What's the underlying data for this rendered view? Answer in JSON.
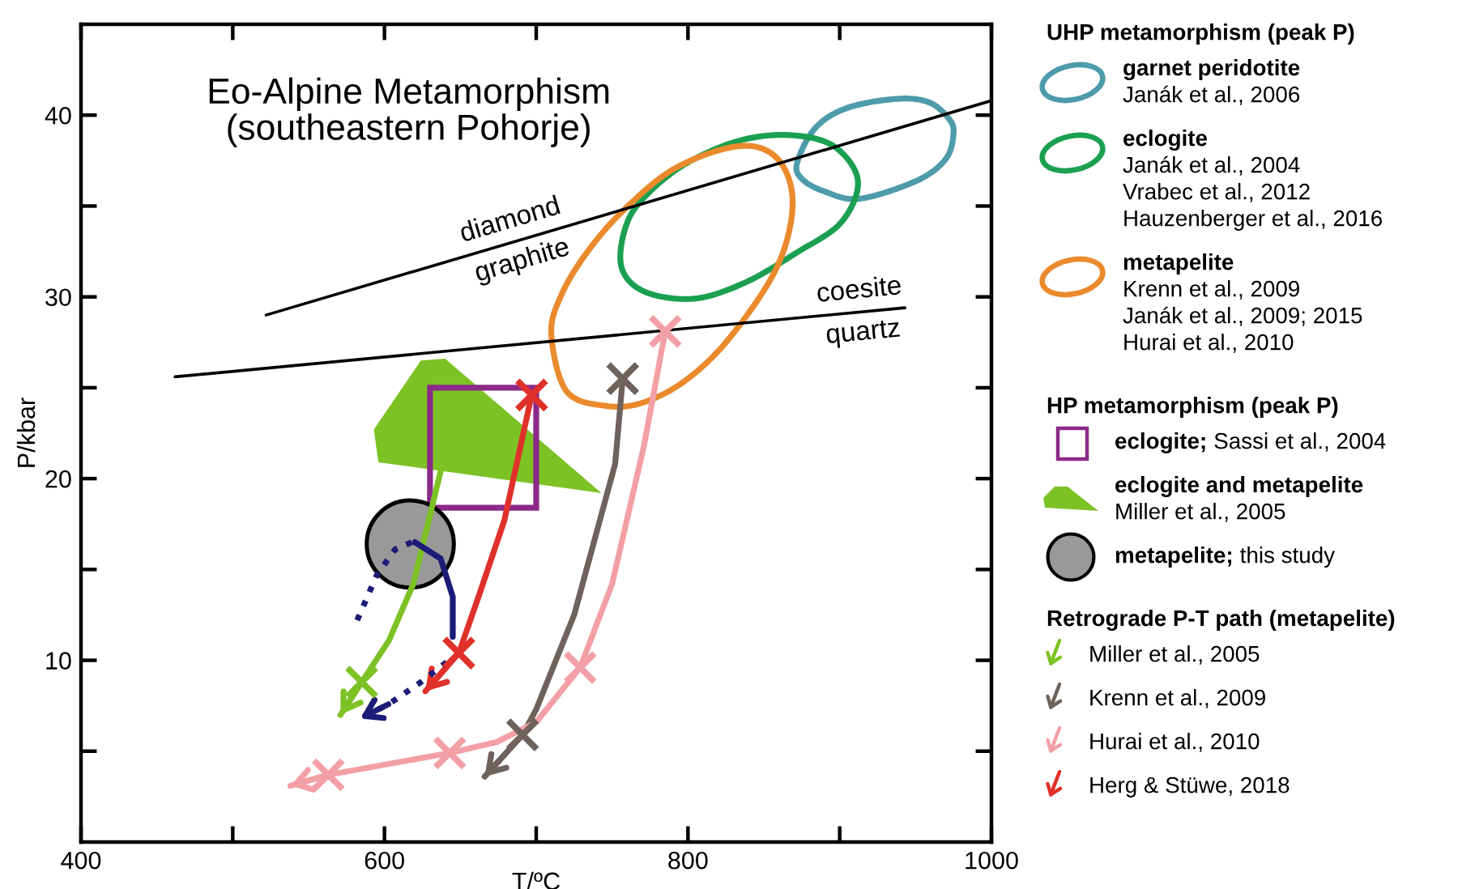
{
  "chart_data": {
    "type": "line",
    "title": "Eo-Alpine Metamorphism\n(southeastern Pohorje)",
    "xlabel": "T/ºC",
    "ylabel": "P/kbar",
    "xlim": [
      400,
      1000
    ],
    "ylim": [
      0,
      45
    ],
    "xticks": [
      400,
      {
        "value": 500,
        "label": null
      },
      600,
      {
        "value": 700,
        "label": null
      },
      800,
      {
        "value": 900,
        "label": null
      },
      1000
    ],
    "yticks": [
      {
        "value": 5,
        "label": null
      },
      10,
      {
        "value": 15,
        "label": null
      },
      20,
      {
        "value": 25,
        "label": null
      },
      30,
      {
        "value": 35,
        "label": null
      },
      40
    ],
    "legend": "right",
    "annotations": [
      "UHP metamorphism (peak P)",
      "garnet peridotite\nJanák et al., 2006",
      "eclogite\nJanák et al., 2004\nVrabec et al., 2012\nHauzenberger et al., 2016",
      "metapelite\nKrenn et al., 2009\nJanák et al., 2009; 2015\nHurai et al., 2010",
      "HP metamorphism (peak P)",
      "eclogite; Sassi et al., 2004",
      "Retrograde P-T path (metapelite)"
    ],
    "series": [
      {
        "name": "diamond\ngraphite",
        "color": "#000000",
        "x": [
          522,
          1000
        ],
        "values": [
          29.0,
          40.8
        ]
      },
      {
        "name": "coesite\nquartz",
        "color": "#000000",
        "x": [
          462,
          943
        ],
        "values": [
          25.6,
          29.4
        ]
      },
      {
        "type": "area",
        "name": "eclogite and metapelite\nMiller et al., 2005",
        "color": "#7dc224",
        "x": [
          593,
          624,
          640,
          743,
          596
        ],
        "values": [
          22.7,
          26.5,
          26.6,
          19.2,
          20.9
        ]
      },
      {
        "type": "scatter",
        "marker": "circle",
        "name": "metapelite; this study",
        "color": "#999999",
        "x": [
          617
        ],
        "values": [
          16.4
        ]
      },
      {
        "name": "Miller et al., 2005",
        "color": "#7dc224",
        "x": [
          637,
          619,
          603,
          585,
          571
        ],
        "values": [
          20.4,
          14.2,
          11.1,
          8.8,
          7.0
        ]
      },
      {
        "name": "Krenn et al., 2009",
        "color": "#6e625c",
        "x": [
          757,
          752,
          725,
          700,
          691,
          666
        ],
        "values": [
          25.5,
          20.8,
          12.5,
          7.3,
          5.9,
          3.6
        ]
      },
      {
        "name": "Hurai et al., 2010",
        "color": "#f2a0a6",
        "x": [
          785,
          771,
          750,
          729,
          700,
          674,
          643,
          563,
          538
        ],
        "values": [
          28.1,
          21.8,
          14.2,
          9.6,
          6.6,
          5.5,
          4.9,
          3.7,
          3.1
        ]
      },
      {
        "name": "Herg & Stüwe, 2018",
        "color": "#e0302a",
        "x": [
          697,
          679,
          662,
          649,
          627
        ],
        "values": [
          24.6,
          17.7,
          13.5,
          10.4,
          8.3
        ]
      },
      {
        "color": "#1c1c78",
        "x": [
          620,
          637,
          645,
          645
        ],
        "values": [
          16.5,
          15.6,
          13.5,
          11.3
        ]
      },
      {
        "color": "#1c1c78",
        "x": [
          582,
          595,
          607,
          618
        ],
        "values": [
          12.2,
          14.7,
          16.1,
          16.5
        ],
        "line_style": "dotted"
      },
      {
        "color": "#1c1c78",
        "x": [
          641,
          624,
          603,
          584
        ],
        "values": [
          9.9,
          8.8,
          7.6,
          6.8
        ],
        "line_style": "dotted"
      },
      {
        "type": "scatter",
        "marker": "cross",
        "color": "#7dc224",
        "x": [
          585
        ],
        "values": [
          8.8
        ]
      },
      {
        "type": "scatter",
        "marker": "cross",
        "color": "#e0302a",
        "x": [
          697,
          649
        ],
        "values": [
          24.6,
          10.4
        ]
      },
      {
        "type": "scatter",
        "marker": "cross",
        "color": "#6e625c",
        "x": [
          757,
          691
        ],
        "values": [
          25.5,
          5.9
        ]
      },
      {
        "type": "scatter",
        "marker": "cross",
        "color": "#f2a0a6",
        "x": [
          785,
          729,
          643,
          563
        ],
        "values": [
          28.1,
          9.6,
          4.9,
          3.7
        ]
      }
    ]
  }
}
